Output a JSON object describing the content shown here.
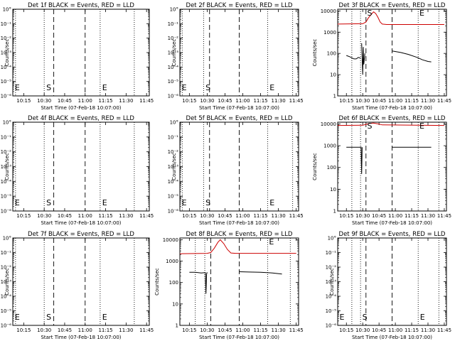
{
  "chart_data": [
    {
      "type": "line",
      "title": "Det 1f BLACK = Events, RED = LLD",
      "xlabel": "Start Time (07-Feb-18 10:07:00)",
      "ylabel": "Counts/sec",
      "x_ticks": [
        "10:15",
        "10:30",
        "10:45",
        "11:00",
        "11:15",
        "11:30",
        "11:45"
      ],
      "y_ticks": [
        "10°",
        "10⁻¹",
        "10⁻²",
        "10⁻³",
        "10⁻⁴",
        "10⁻⁵",
        "10⁻⁶"
      ],
      "y_log": true,
      "ylim": [
        1e-06,
        1
      ],
      "xlim": [
        "10:07:00",
        "11:47:00"
      ],
      "dotted_lines": [
        "10:09:00",
        "10:30:00",
        "11:11:00",
        "11:36:00"
      ],
      "dashed_lines": [
        "10:37:00",
        "11:00:00"
      ],
      "markers": [
        {
          "label": "E",
          "x": "10:08:00"
        },
        {
          "label": "S",
          "x": "10:31:00"
        },
        {
          "label": "E",
          "x": "11:12:00"
        }
      ],
      "series": []
    },
    {
      "type": "line",
      "title": "Det 2f BLACK = Events, RED = LLD",
      "xlabel": "Start Time (07-Feb-18 10:07:00)",
      "ylabel": "Counts/sec",
      "x_ticks": [
        "10:15",
        "10:30",
        "10:45",
        "11:00",
        "11:15",
        "11:30",
        "11:45"
      ],
      "y_ticks": [
        "10°",
        "10⁻¹",
        "10⁻²",
        "10⁻³",
        "10⁻⁴",
        "10⁻⁵",
        "10⁻⁶"
      ],
      "y_log": true,
      "ylim": [
        1e-06,
        1
      ],
      "xlim": [
        "10:07:00",
        "11:47:00"
      ],
      "dotted_lines": [
        "10:09:00",
        "10:27:00",
        "11:21:00",
        "11:42:00"
      ],
      "dashed_lines": [
        "10:32:00",
        "10:57:00"
      ],
      "markers": [
        {
          "label": "E",
          "x": "10:08:00"
        },
        {
          "label": "S",
          "x": "10:28:00"
        },
        {
          "label": "E",
          "x": "11:22:00"
        }
      ],
      "series": []
    },
    {
      "type": "line",
      "title": "Det 3f BLACK = Events, RED = LLD",
      "xlabel": "Start Time (07-Feb-18 10:07:00)",
      "ylabel": "Counts/sec",
      "x_ticks": [
        "10:15",
        "10:30",
        "10:45",
        "11:00",
        "11:15",
        "11:30",
        "11:45"
      ],
      "y_ticks": [
        "1",
        "10",
        "100",
        "1000",
        "10000"
      ],
      "y_log": true,
      "ylim": [
        1,
        12000
      ],
      "xlim": [
        "10:07:00",
        "11:47:00"
      ],
      "dotted_lines": [
        "10:20:00",
        "10:28:00",
        "11:21:00",
        "11:40:00"
      ],
      "dashed_lines": [
        "10:33:00",
        "10:57:00"
      ],
      "markers": [
        {
          "label": "S",
          "x": "10:33:30"
        },
        {
          "label": "E",
          "x": "11:21:30"
        }
      ],
      "series": [
        {
          "color": "#cc0000",
          "x": [
            "10:07",
            "10:30",
            "10:33",
            "10:35",
            "10:38",
            "10:40",
            "10:42",
            "10:44",
            "10:46",
            "10:48",
            "10:52",
            "11:45"
          ],
          "y": [
            2400,
            2500,
            3000,
            4500,
            7000,
            9000,
            7500,
            5000,
            3000,
            2400,
            2300,
            2300
          ]
        },
        {
          "color": "#000000",
          "x": [
            "10:15",
            "10:18",
            "10:22",
            "10:24",
            "10:26",
            "10:28"
          ],
          "y": [
            80,
            70,
            55,
            55,
            65,
            60
          ]
        },
        {
          "color": "#000000",
          "x": [
            "10:29",
            "10:29:30",
            "10:30",
            "10:30:30",
            "10:31",
            "10:32"
          ],
          "y": [
            300,
            60,
            10,
            200,
            30,
            100
          ]
        },
        {
          "color": "#000000",
          "x": [
            "10:57",
            "11:05",
            "11:12",
            "11:20",
            "11:25",
            "11:30",
            "11:33"
          ],
          "y": [
            130,
            110,
            90,
            65,
            50,
            42,
            40
          ]
        }
      ]
    },
    {
      "type": "line",
      "title": "Det 4f BLACK = Events, RED = LLD",
      "xlabel": "Start Time (07-Feb-18 10:07:00)",
      "ylabel": "Counts/sec",
      "x_ticks": [
        "10:15",
        "10:30",
        "10:45",
        "11:00",
        "11:15",
        "11:30",
        "11:45"
      ],
      "y_ticks": [
        "10°",
        "10⁻¹",
        "10⁻²",
        "10⁻³",
        "10⁻⁴",
        "10⁻⁵",
        "10⁻⁶"
      ],
      "y_log": true,
      "ylim": [
        1e-06,
        1
      ],
      "xlim": [
        "10:07:00",
        "11:47:00"
      ],
      "dotted_lines": [
        "10:09:00",
        "10:30:00",
        "11:11:00",
        "11:36:00"
      ],
      "dashed_lines": [
        "10:37:00",
        "11:00:00"
      ],
      "markers": [
        {
          "label": "E",
          "x": "10:08:00"
        },
        {
          "label": "S",
          "x": "10:31:00"
        },
        {
          "label": "E",
          "x": "11:12:00"
        }
      ],
      "series": []
    },
    {
      "type": "line",
      "title": "Det 5f BLACK = Events, RED = LLD",
      "xlabel": "Start Time (07-Feb-18 10:07:00)",
      "ylabel": "Counts/sec",
      "x_ticks": [
        "10:15",
        "10:30",
        "10:45",
        "11:00",
        "11:15",
        "11:30",
        "11:45"
      ],
      "y_ticks": [
        "10°",
        "10⁻¹",
        "10⁻²",
        "10⁻³",
        "10⁻⁴",
        "10⁻⁵",
        "10⁻⁶"
      ],
      "y_log": true,
      "ylim": [
        1e-06,
        1
      ],
      "xlim": [
        "10:07:00",
        "11:47:00"
      ],
      "dotted_lines": [
        "10:09:00",
        "10:27:00",
        "11:21:00",
        "11:42:00"
      ],
      "dashed_lines": [
        "10:32:00",
        "10:57:00"
      ],
      "markers": [
        {
          "label": "E",
          "x": "10:08:00"
        },
        {
          "label": "S",
          "x": "10:28:00"
        },
        {
          "label": "E",
          "x": "11:22:00"
        }
      ],
      "series": []
    },
    {
      "type": "line",
      "title": "Det 6f BLACK = Events, RED = LLD",
      "xlabel": "Start Time (07-Feb-18 10:07:00)",
      "ylabel": "Counts/sec",
      "x_ticks": [
        "10:15",
        "10:30",
        "10:45",
        "11:00",
        "11:15",
        "11:30",
        "11:45"
      ],
      "y_ticks": [
        "1",
        "10",
        "100",
        "1000",
        "10000"
      ],
      "y_log": true,
      "ylim": [
        1,
        12000
      ],
      "xlim": [
        "10:07:00",
        "11:47:00"
      ],
      "dotted_lines": [
        "10:20:00",
        "10:28:00",
        "11:21:00",
        "11:40:00"
      ],
      "dashed_lines": [
        "10:33:00",
        "10:57:00"
      ],
      "markers": [
        {
          "label": "S",
          "x": "10:33:30"
        },
        {
          "label": "E",
          "x": "11:21:30"
        }
      ],
      "series": [
        {
          "color": "#cc0000",
          "x": [
            "10:07",
            "10:30",
            "10:33",
            "10:36",
            "10:40",
            "10:44",
            "10:48",
            "11:45"
          ],
          "y": [
            8500,
            8700,
            9500,
            10500,
            11000,
            10000,
            9000,
            8500
          ]
        },
        {
          "color": "#000000",
          "x": [
            "10:15",
            "10:20",
            "10:25",
            "10:28"
          ],
          "y": [
            850,
            850,
            850,
            850
          ]
        },
        {
          "color": "#000000",
          "x": [
            "10:28:30",
            "10:29",
            "10:29:30"
          ],
          "y": [
            900,
            50,
            850
          ]
        },
        {
          "color": "#000000",
          "x": [
            "10:57",
            "11:05",
            "11:15",
            "11:25",
            "11:33"
          ],
          "y": [
            850,
            850,
            850,
            850,
            850
          ]
        }
      ]
    },
    {
      "type": "line",
      "title": "Det 7f BLACK = Events, RED = LLD",
      "xlabel": "Start Time (07-Feb-18 10:07:00)",
      "ylabel": "Counts/sec",
      "x_ticks": [
        "10:15",
        "10:30",
        "10:45",
        "11:00",
        "11:15",
        "11:30",
        "11:45"
      ],
      "y_ticks": [
        "10°",
        "10⁻¹",
        "10⁻²",
        "10⁻³",
        "10⁻⁴",
        "10⁻⁵",
        "10⁻⁶"
      ],
      "y_log": true,
      "ylim": [
        1e-06,
        1
      ],
      "xlim": [
        "10:07:00",
        "11:47:00"
      ],
      "dotted_lines": [
        "10:09:00",
        "10:30:00",
        "11:11:00",
        "11:36:00"
      ],
      "dashed_lines": [
        "10:37:00",
        "11:00:00"
      ],
      "markers": [
        {
          "label": "E",
          "x": "10:08:00"
        },
        {
          "label": "S",
          "x": "10:31:00"
        },
        {
          "label": "E",
          "x": "11:12:00"
        }
      ],
      "series": []
    },
    {
      "type": "line",
      "title": "Det 8f BLACK = Events, RED = LLD",
      "xlabel": "Start Time (07-Feb-18 10:07:00)",
      "ylabel": "Counts/sec",
      "x_ticks": [
        "10:15",
        "10:30",
        "10:45",
        "11:00",
        "11:15",
        "11:30",
        "11:45"
      ],
      "y_ticks": [
        "1",
        "10",
        "100",
        "1000",
        "10000"
      ],
      "y_log": true,
      "ylim": [
        1,
        12000
      ],
      "xlim": [
        "10:07:00",
        "11:47:00"
      ],
      "dotted_lines": [
        "10:20:00",
        "10:28:00",
        "11:21:00",
        "11:40:00"
      ],
      "dashed_lines": [
        "10:33:00",
        "10:57:00"
      ],
      "markers": [
        {
          "label": "E",
          "x": "11:21:30"
        }
      ],
      "series": [
        {
          "color": "#cc0000",
          "x": [
            "10:07",
            "10:30",
            "10:33",
            "10:36",
            "10:39",
            "10:41",
            "10:44",
            "10:47",
            "10:50",
            "10:54",
            "11:45"
          ],
          "y": [
            2200,
            2300,
            2500,
            4000,
            7500,
            10000,
            6500,
            3500,
            2400,
            2300,
            2300
          ]
        },
        {
          "color": "#000000",
          "x": [
            "10:15",
            "10:20",
            "10:25",
            "10:28"
          ],
          "y": [
            300,
            300,
            280,
            290
          ]
        },
        {
          "color": "#000000",
          "x": [
            "10:28:30",
            "10:29",
            "10:29:30",
            "10:30"
          ],
          "y": [
            300,
            30,
            250,
            300
          ]
        },
        {
          "color": "#000000",
          "x": [
            "10:57",
            "11:05",
            "11:15",
            "11:25",
            "11:33"
          ],
          "y": [
            320,
            310,
            300,
            280,
            250
          ]
        }
      ]
    },
    {
      "type": "line",
      "title": "Det 9f BLACK = Events, RED = LLD",
      "xlabel": "Start Time (07-Feb-18 10:07:00)",
      "ylabel": "Counts/sec",
      "x_ticks": [
        "10:15",
        "10:30",
        "10:45",
        "11:00",
        "11:15",
        "11:30",
        "11:45"
      ],
      "y_ticks": [
        "10°",
        "10⁻¹",
        "10⁻²",
        "10⁻³",
        "10⁻⁴",
        "10⁻⁵",
        "10⁻⁶"
      ],
      "y_log": true,
      "ylim": [
        1e-06,
        1
      ],
      "xlim": [
        "10:07:00",
        "11:47:00"
      ],
      "dotted_lines": [
        "10:20:00",
        "10:28:00",
        "11:21:00",
        "11:40:00"
      ],
      "dashed_lines": [
        "10:33:00",
        "10:57:00"
      ],
      "markers": [
        {
          "label": "E",
          "x": "10:08:00"
        },
        {
          "label": "S",
          "x": "10:29:00"
        },
        {
          "label": "E",
          "x": "11:22:00"
        }
      ],
      "series": []
    }
  ]
}
